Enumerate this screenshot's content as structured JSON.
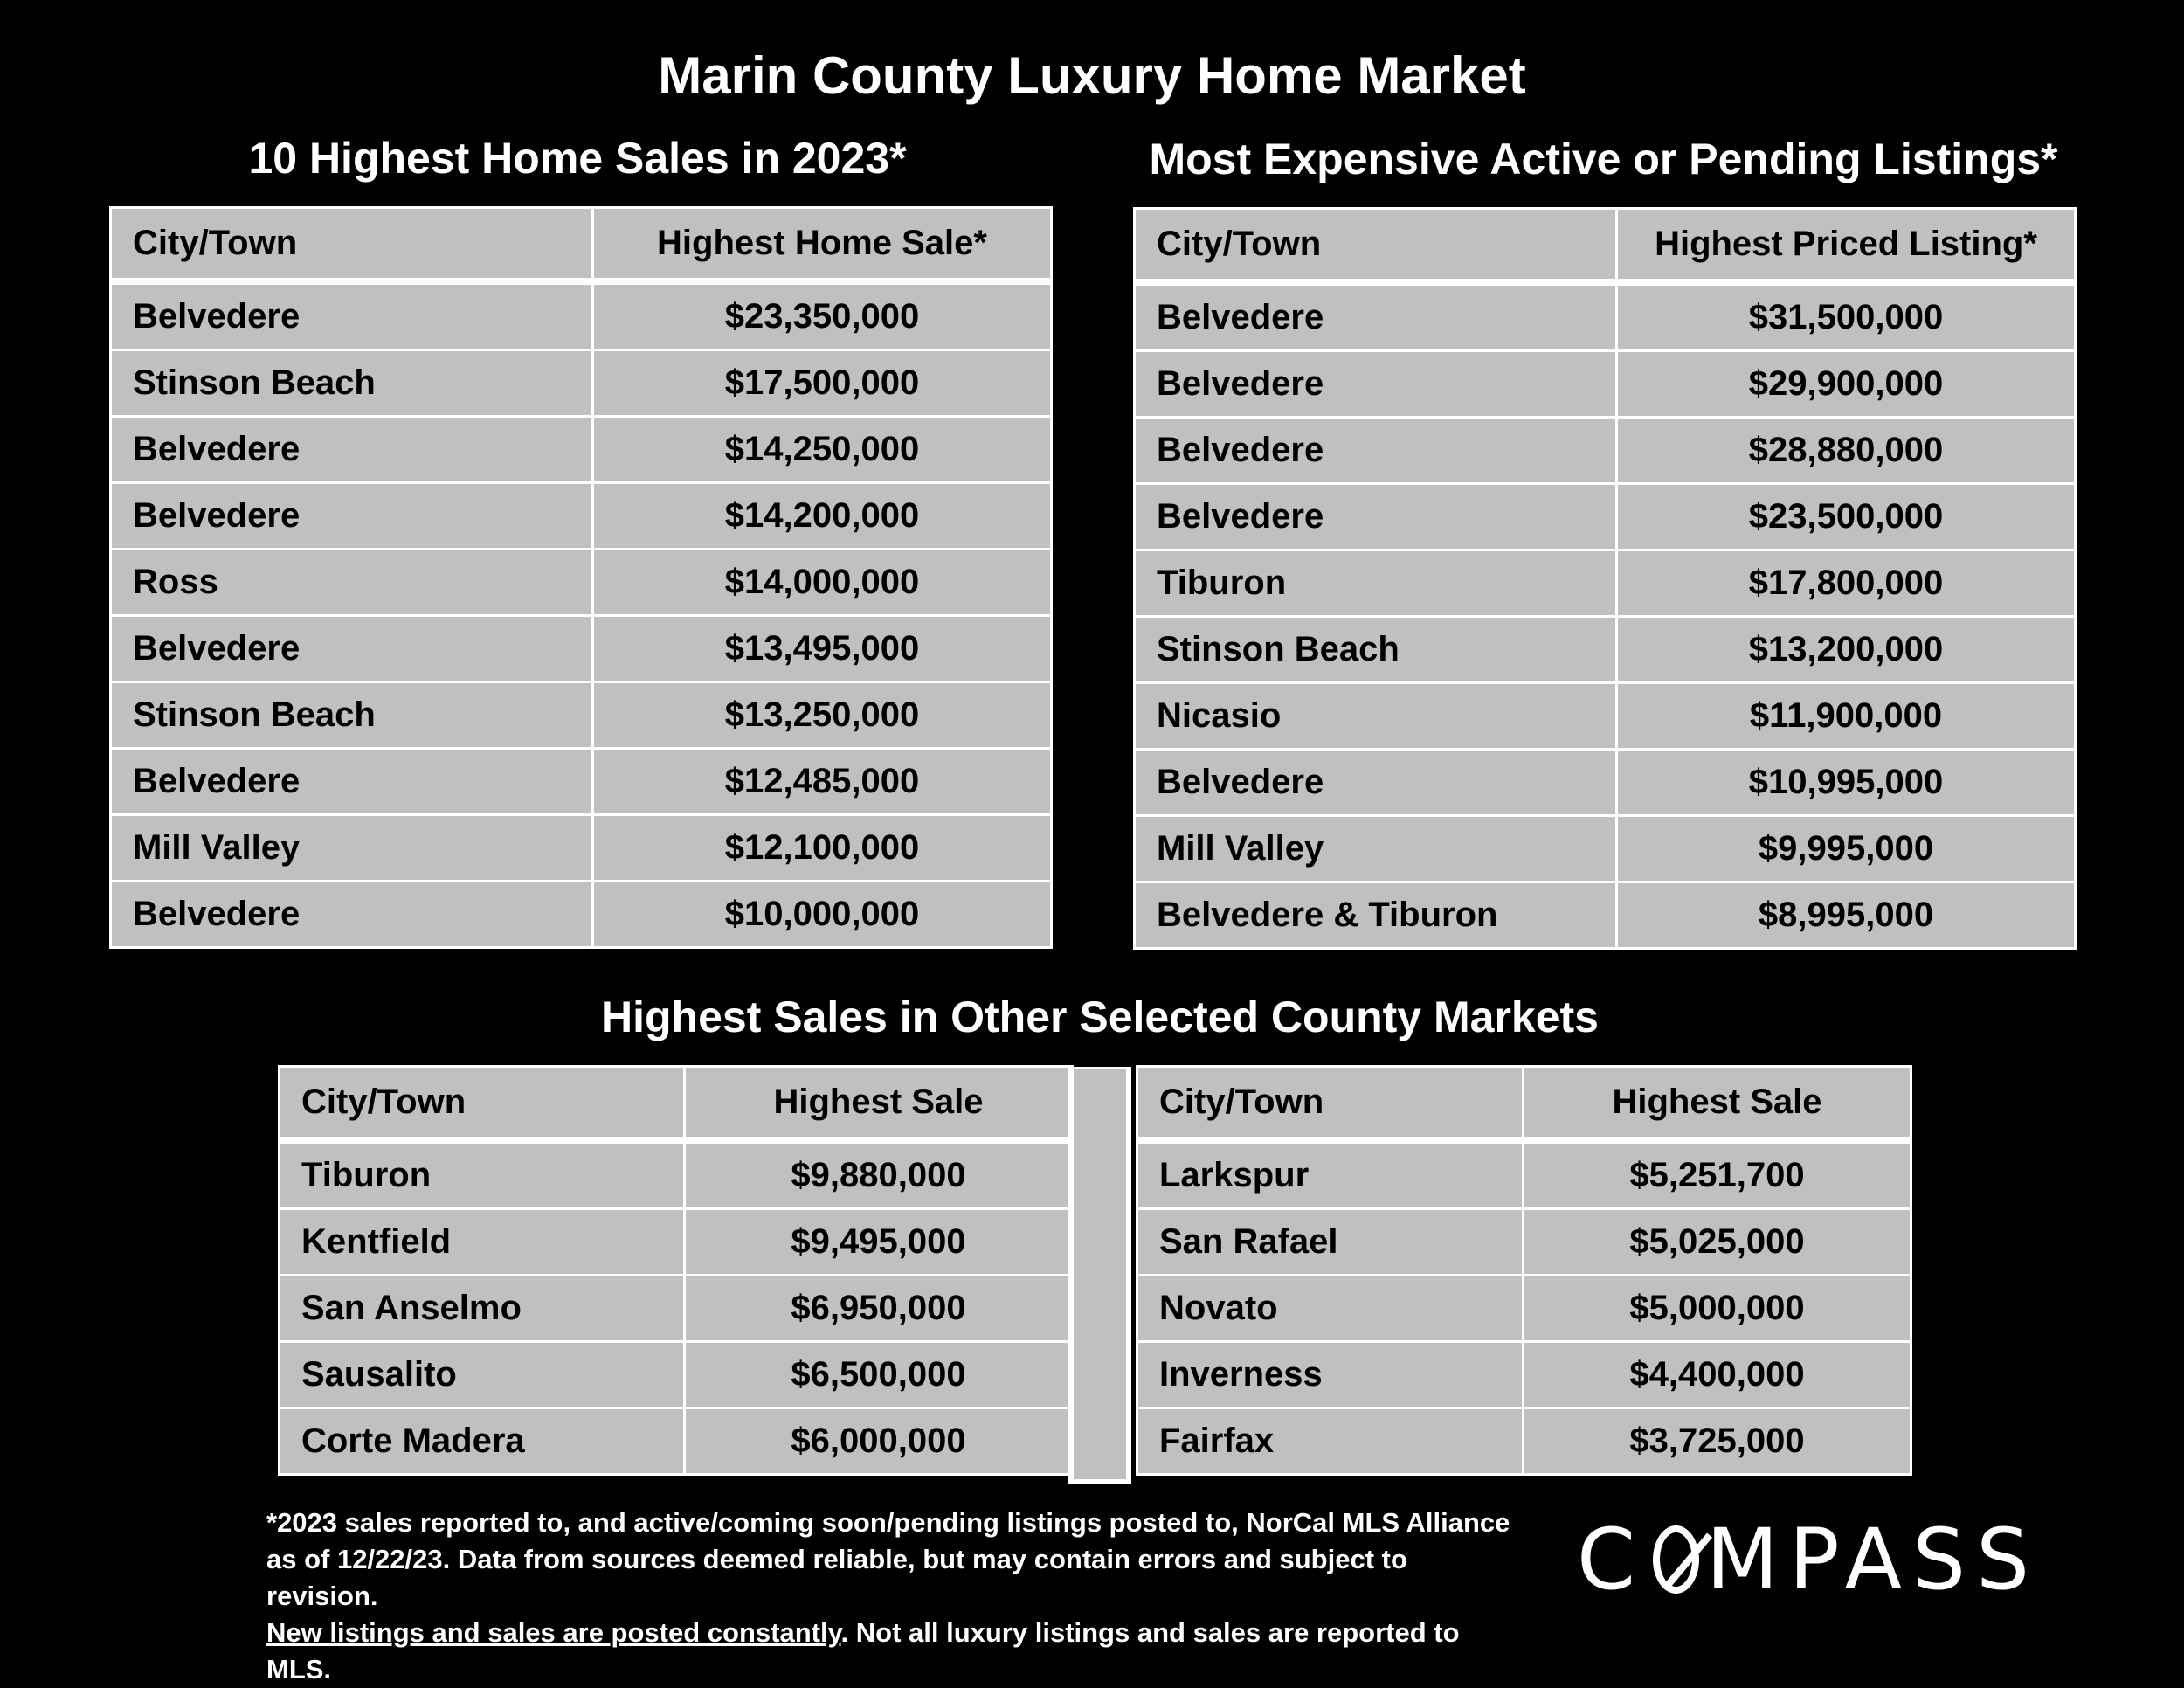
{
  "title": "Marin County Luxury Home Market",
  "sales": {
    "heading": "10 Highest Home Sales in 2023*",
    "col_city": "City/Town",
    "col_value": "Highest Home Sale*",
    "rows": [
      {
        "city": "Belvedere",
        "value": "$23,350,000"
      },
      {
        "city": "Stinson Beach",
        "value": "$17,500,000"
      },
      {
        "city": "Belvedere",
        "value": "$14,250,000"
      },
      {
        "city": "Belvedere",
        "value": "$14,200,000"
      },
      {
        "city": "Ross",
        "value": "$14,000,000"
      },
      {
        "city": "Belvedere",
        "value": "$13,495,000"
      },
      {
        "city": "Stinson Beach",
        "value": "$13,250,000"
      },
      {
        "city": "Belvedere",
        "value": "$12,485,000"
      },
      {
        "city": "Mill Valley",
        "value": "$12,100,000"
      },
      {
        "city": "Belvedere",
        "value": "$10,000,000"
      }
    ]
  },
  "listings": {
    "heading": "Most Expensive Active or Pending Listings*",
    "col_city": "City/Town",
    "col_value": "Highest Priced Listing*",
    "rows": [
      {
        "city": "Belvedere",
        "value": "$31,500,000"
      },
      {
        "city": "Belvedere",
        "value": "$29,900,000"
      },
      {
        "city": "Belvedere",
        "value": "$28,880,000"
      },
      {
        "city": "Belvedere",
        "value": "$23,500,000"
      },
      {
        "city": "Tiburon",
        "value": "$17,800,000"
      },
      {
        "city": "Stinson Beach",
        "value": "$13,200,000"
      },
      {
        "city": "Nicasio",
        "value": "$11,900,000"
      },
      {
        "city": "Belvedere",
        "value": "$10,995,000"
      },
      {
        "city": "Mill Valley",
        "value": "$9,995,000"
      },
      {
        "city": "Belvedere & Tiburon",
        "value": "$8,995,000"
      }
    ]
  },
  "other": {
    "heading": "Highest Sales in Other Selected County Markets",
    "left": {
      "col_city": "City/Town",
      "col_value": "Highest Sale",
      "rows": [
        {
          "city": "Tiburon",
          "value": "$9,880,000"
        },
        {
          "city": "Kentfield",
          "value": "$9,495,000"
        },
        {
          "city": "San Anselmo",
          "value": "$6,950,000"
        },
        {
          "city": "Sausalito",
          "value": "$6,500,000"
        },
        {
          "city": "Corte Madera",
          "value": "$6,000,000"
        }
      ]
    },
    "right": {
      "col_city": "City/Town",
      "col_value": "Highest Sale",
      "rows": [
        {
          "city": "Larkspur",
          "value": "$5,251,700"
        },
        {
          "city": "San Rafael",
          "value": "$5,025,000"
        },
        {
          "city": "Novato",
          "value": "$5,000,000"
        },
        {
          "city": "Inverness",
          "value": "$4,400,000"
        },
        {
          "city": "Fairfax",
          "value": "$3,725,000"
        }
      ]
    }
  },
  "footnote": {
    "line1": "*2023 sales reported to, and active/coming soon/pending listings posted to, NorCal MLS Alliance",
    "line2": "as of 12/22/23. Data from sources deemed reliable, but may contain errors and subject to revision.",
    "line3_underlined": "New listings and sales are posted constantly",
    "line3_rest": ". Not all luxury listings and sales are reported to MLS."
  },
  "logo": {
    "before": "C",
    "after": "MPASS",
    "o_icon": "compass-o-icon"
  }
}
